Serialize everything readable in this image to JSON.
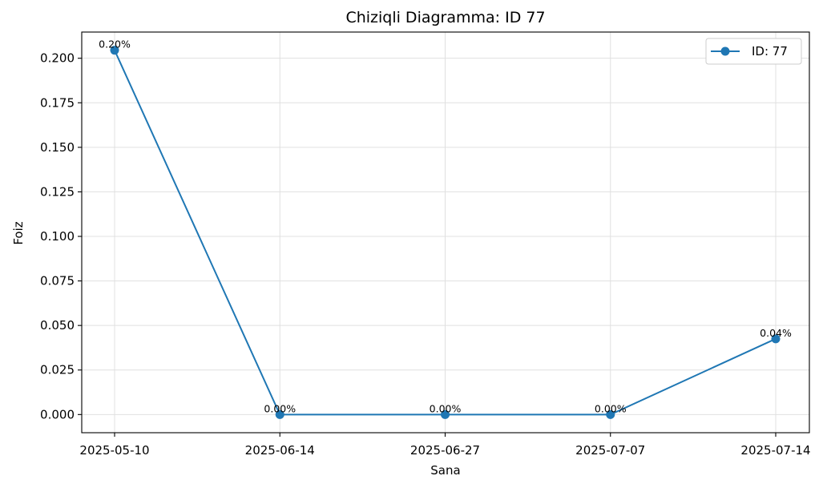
{
  "chart_data": {
    "type": "line",
    "title": "Chiziqli Diagramma: ID 77",
    "xlabel": "Sana",
    "ylabel": "Foiz",
    "categories": [
      "2025-05-10",
      "2025-06-14",
      "2025-06-27",
      "2025-07-07",
      "2025-07-14"
    ],
    "series": [
      {
        "name": "ID: 77",
        "values": [
          0.2045,
          0.0,
          0.0,
          0.0,
          0.0425
        ],
        "labels": [
          "0.20%",
          "0.00%",
          "0.00%",
          "0.00%",
          "0.04%"
        ],
        "color": "#1f77b4",
        "marker": "circle"
      }
    ],
    "yticks": [
      0.0,
      0.025,
      0.05,
      0.075,
      0.1,
      0.125,
      0.15,
      0.175,
      0.2
    ],
    "ytick_labels": [
      "0.000",
      "0.025",
      "0.050",
      "0.075",
      "0.100",
      "0.125",
      "0.150",
      "0.175",
      "0.200"
    ],
    "ylim": [
      -0.0102,
      0.2147
    ],
    "grid": true,
    "legend": {
      "position": "top-right"
    }
  }
}
